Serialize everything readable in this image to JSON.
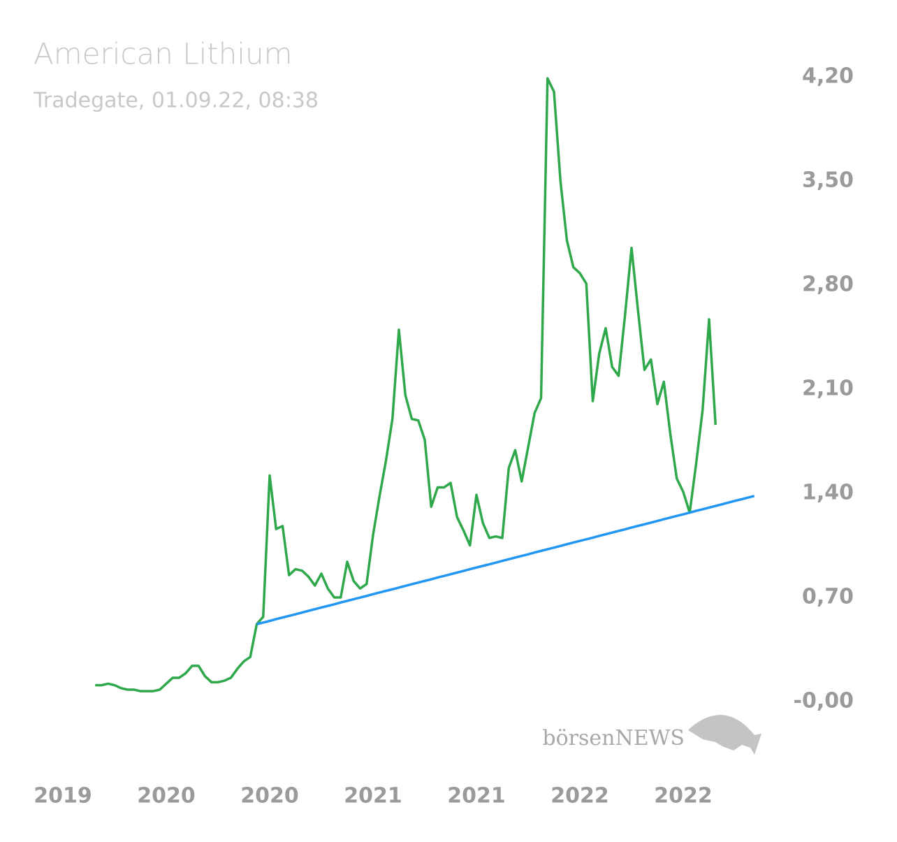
{
  "chart_data": {
    "type": "line",
    "title": "American Lithium",
    "subtitle": "Tradegate, 01.09.22, 08:38",
    "watermark": "börsenNEWS",
    "categories": [
      "2019",
      null,
      null,
      null,
      null,
      null,
      null,
      null,
      null,
      null,
      null,
      null,
      null,
      null,
      null,
      null,
      "2020",
      null,
      null,
      null,
      null,
      null,
      null,
      null,
      null,
      null,
      null,
      null,
      null,
      null,
      null,
      null,
      "2020",
      null,
      null,
      null,
      null,
      null,
      null,
      null,
      null,
      null,
      null,
      null,
      null,
      null,
      null,
      null,
      "2021",
      null,
      null,
      null,
      null,
      null,
      null,
      null,
      null,
      null,
      null,
      null,
      null,
      null,
      null,
      null,
      "2021",
      null,
      null,
      null,
      null,
      null,
      null,
      null,
      null,
      null,
      null,
      null,
      null,
      null,
      null,
      null,
      "2022",
      null,
      null,
      null,
      null,
      null,
      null,
      null,
      null,
      null,
      null,
      null,
      null,
      null,
      null,
      null,
      "2022",
      null,
      null,
      null,
      null,
      null,
      null,
      null,
      null,
      null,
      null,
      null
    ],
    "series": [
      {
        "color": "#2ea84a",
        "values": [
          null,
          null,
          null,
          null,
          null,
          0.11,
          0.11,
          0.12,
          0.11,
          0.09,
          0.08,
          0.08,
          0.07,
          0.07,
          0.07,
          0.08,
          0.12,
          0.16,
          0.16,
          0.19,
          0.24,
          0.24,
          0.17,
          0.13,
          0.13,
          0.14,
          0.16,
          0.22,
          0.27,
          0.3,
          0.52,
          0.57,
          1.52,
          1.16,
          1.18,
          0.85,
          0.89,
          0.88,
          0.84,
          0.78,
          0.86,
          0.76,
          0.7,
          0.7,
          0.94,
          0.81,
          0.76,
          0.79,
          1.12,
          1.38,
          1.62,
          1.9,
          2.5,
          2.06,
          1.9,
          1.89,
          1.76,
          1.31,
          1.44,
          1.44,
          1.47,
          1.24,
          1.15,
          1.05,
          1.39,
          1.2,
          1.1,
          1.11,
          1.1,
          1.57,
          1.69,
          1.48,
          1.71,
          1.94,
          2.04,
          4.19,
          4.1,
          3.5,
          3.1,
          2.92,
          2.88,
          2.81,
          2.02,
          2.34,
          2.51,
          2.25,
          2.19,
          2.6,
          3.05,
          2.63,
          2.23,
          2.3,
          2.0,
          2.15,
          1.8,
          1.5,
          1.41,
          1.27,
          1.6,
          1.96,
          2.57,
          1.86,
          null,
          null,
          null,
          null,
          null,
          null
        ]
      },
      {
        "color": "#2196f3",
        "values": [
          null,
          null,
          null,
          null,
          null,
          null,
          null,
          null,
          null,
          null,
          null,
          null,
          null,
          null,
          null,
          null,
          null,
          null,
          null,
          null,
          null,
          null,
          null,
          null,
          null,
          null,
          null,
          null,
          null,
          null,
          0.52,
          0.531,
          0.542,
          0.554,
          0.565,
          0.576,
          0.587,
          0.598,
          0.61,
          0.621,
          0.632,
          0.643,
          0.654,
          0.666,
          0.677,
          0.688,
          0.699,
          0.71,
          0.722,
          0.733,
          0.744,
          0.755,
          0.766,
          0.778,
          0.789,
          0.8,
          0.811,
          0.822,
          0.834,
          0.845,
          0.856,
          0.867,
          0.878,
          0.89,
          0.901,
          0.912,
          0.923,
          0.934,
          0.946,
          0.957,
          0.968,
          0.979,
          0.99,
          1.002,
          1.013,
          1.024,
          1.035,
          1.046,
          1.058,
          1.069,
          1.08,
          1.091,
          1.102,
          1.114,
          1.125,
          1.136,
          1.147,
          1.158,
          1.17,
          1.181,
          1.192,
          1.203,
          1.214,
          1.226,
          1.237,
          1.248,
          1.259,
          1.27,
          1.282,
          1.293,
          1.304,
          1.315,
          1.326,
          1.338,
          1.349,
          1.36,
          1.371,
          1.382
        ]
      }
    ],
    "ylim": [
      0,
      4.2
    ],
    "yticks": [
      {
        "value": 0,
        "label": "-0,00"
      },
      {
        "value": 0.7,
        "label": "0,70"
      },
      {
        "value": 1.4,
        "label": "1,40"
      },
      {
        "value": 2.1,
        "label": "2,10"
      },
      {
        "value": 2.8,
        "label": "2,80"
      },
      {
        "value": 3.5,
        "label": "3,50"
      },
      {
        "value": 4.2,
        "label": "4,20"
      }
    ],
    "grid": false
  }
}
